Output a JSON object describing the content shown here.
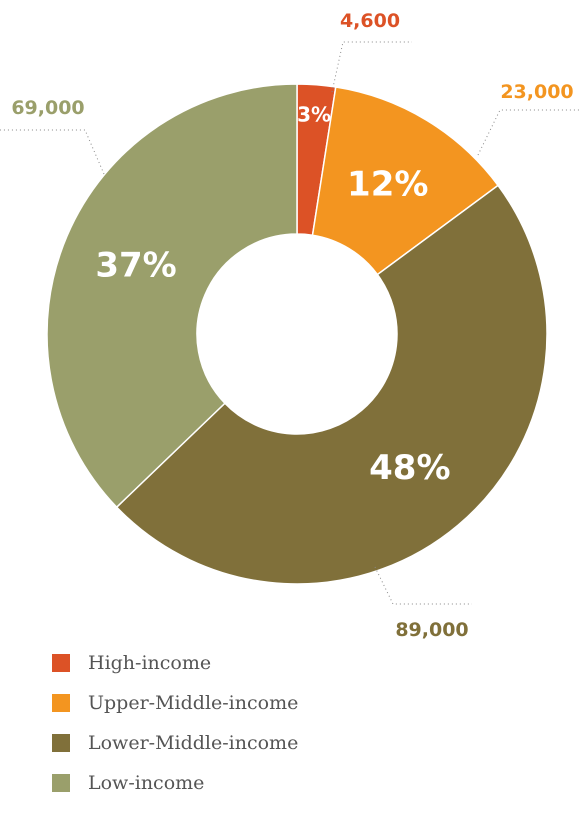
{
  "chart_data": {
    "type": "pie",
    "subtype": "donut",
    "slices": [
      {
        "label": "High-income",
        "value": 4600,
        "value_label": "4,600",
        "percent_label": "3%",
        "color": "#dc5226"
      },
      {
        "label": "Upper-Middle-income",
        "value": 23000,
        "value_label": "23,000",
        "percent_label": "12%",
        "color": "#f39520"
      },
      {
        "label": "Lower-Middle-income",
        "value": 89000,
        "value_label": "89,000",
        "percent_label": "48%",
        "color": "#80703a"
      },
      {
        "label": "Low-income",
        "value": 69000,
        "value_label": "69,000",
        "percent_label": "37%",
        "color": "#9a9f6b"
      }
    ],
    "start_angle_deg": 0,
    "direction": "clockwise",
    "legend": {
      "placement": "bottom-left"
    }
  }
}
